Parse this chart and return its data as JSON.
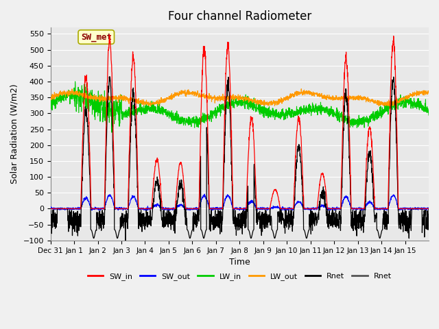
{
  "title": "Four channel Radiometer",
  "xlabel": "Time",
  "ylabel": "Solar Radiation (W/m2)",
  "ylim": [
    -100,
    570
  ],
  "yticks": [
    -100,
    -50,
    0,
    50,
    100,
    150,
    200,
    250,
    300,
    350,
    400,
    450,
    500,
    550
  ],
  "x_labels": [
    "Dec 31",
    "Jan 1",
    "Jan 2",
    "Jan 3",
    "Jan 4",
    "Jan 5",
    "Jan 6",
    "Jan 7",
    "Jan 8",
    "Jan 9",
    "Jan 10",
    "Jan 11",
    "Jan 12",
    "Jan 13",
    "Jan 14",
    "Jan 15"
  ],
  "annotation_text": "SW_met",
  "annotation_bg": "#ffffcc",
  "annotation_fg": "#8b0000",
  "colors": {
    "SW_in": "#ff0000",
    "SW_out": "#0000ff",
    "LW_in": "#00cc00",
    "LW_out": "#ff9900",
    "Rnet_black": "#000000",
    "Rnet_dark": "#555555"
  },
  "legend_entries": [
    "SW_in",
    "SW_out",
    "LW_in",
    "LW_out",
    "Rnet",
    "Rnet"
  ],
  "legend_colors": [
    "#ff0000",
    "#0000ff",
    "#00cc00",
    "#ff9900",
    "#000000",
    "#555555"
  ],
  "background_color": "#e8e8e8",
  "grid_color": "#ffffff"
}
